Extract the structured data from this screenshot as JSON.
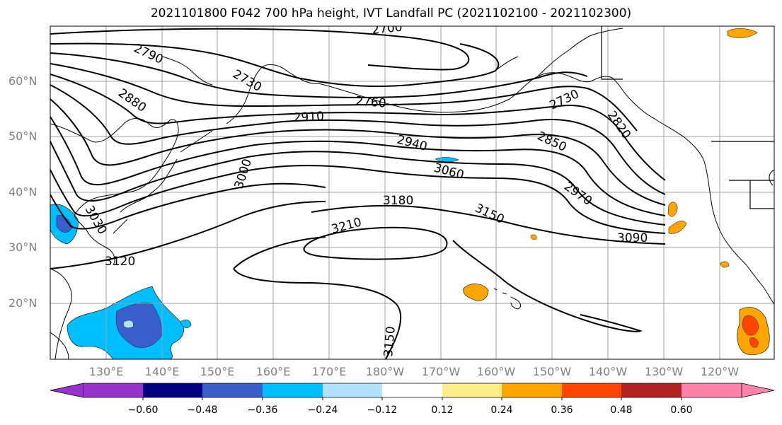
{
  "title": "2021101800 F042 700 hPa height, IVT Landfall PC (2021102100 - 2021102300)",
  "map": {
    "type": "700 hPa geopotential height contours with shaded IVT landfall principal component",
    "region": "North Pacific",
    "lat_labels": [
      "60°N",
      "50°N",
      "40°N",
      "30°N",
      "20°N"
    ],
    "lon_labels": [
      "130°E",
      "140°E",
      "150°E",
      "160°E",
      "170°E",
      "180°W",
      "170°W",
      "160°W",
      "150°W",
      "140°W",
      "130°W",
      "120°W"
    ],
    "contour_labels": [
      "2700",
      "2790",
      "2730",
      "2880",
      "2760",
      "2910",
      "2940",
      "3060",
      "2730",
      "2820",
      "2850",
      "2970",
      "3000",
      "3180",
      "3150",
      "3210",
      "3090",
      "3120",
      "3150",
      "3030"
    ],
    "contour_color": "#000000",
    "coastline_color": "#000000",
    "grid_color": "#a0a0a0"
  },
  "colorbar": {
    "tick_labels": [
      "−0.60",
      "−0.48",
      "−0.36",
      "−0.24",
      "−0.12",
      "0.12",
      "0.24",
      "0.36",
      "0.48",
      "0.60"
    ],
    "colors": [
      "#9932cc",
      "#000080",
      "#3a5fcd",
      "#00bfff",
      "#b0e2ff",
      "#ffffff",
      "#ffec8b",
      "#ffa500",
      "#ff4500",
      "#b22222",
      "#ff82ab"
    ]
  }
}
